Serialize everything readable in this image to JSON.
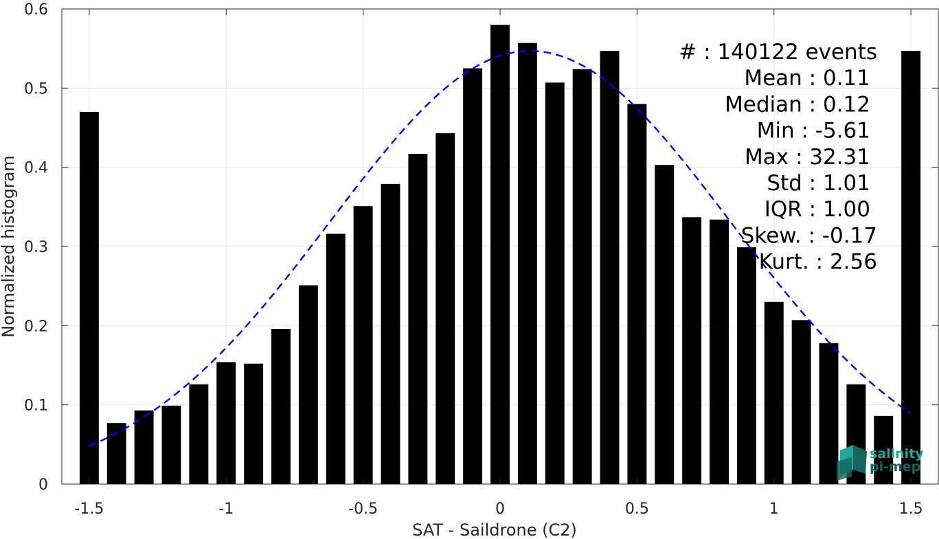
{
  "chart_data": {
    "type": "bar",
    "title": "",
    "xlabel": "SAT - Saildrone (C2)",
    "ylabel": "Normalized histogram",
    "xlim": [
      -1.6,
      1.6
    ],
    "ylim": [
      0,
      0.6
    ],
    "x_ticks": [
      -1.5,
      -1,
      -0.5,
      0,
      0.5,
      1,
      1.5
    ],
    "x_tick_labels": [
      "-1.5",
      "-1",
      "-0.5",
      "0",
      "0.5",
      "1",
      "1.5"
    ],
    "y_ticks": [
      0,
      0.1,
      0.2,
      0.3,
      0.4,
      0.5,
      0.6
    ],
    "y_tick_labels": [
      "0",
      "0.1",
      "0.2",
      "0.3",
      "0.4",
      "0.5",
      "0.6"
    ],
    "grid": true,
    "bar_color": "#000000",
    "fit_color": "#0000ff",
    "bin_centers": [
      -1.5,
      -1.4,
      -1.3,
      -1.2,
      -1.1,
      -1.0,
      -0.9,
      -0.8,
      -0.7,
      -0.6,
      -0.5,
      -0.4,
      -0.3,
      -0.2,
      -0.1,
      0.0,
      0.1,
      0.2,
      0.3,
      0.4,
      0.5,
      0.6,
      0.7,
      0.8,
      0.9,
      1.0,
      1.1,
      1.2,
      1.3,
      1.4,
      1.5
    ],
    "values": [
      0.47,
      0.077,
      0.093,
      0.099,
      0.126,
      0.154,
      0.152,
      0.196,
      0.251,
      0.316,
      0.351,
      0.379,
      0.417,
      0.443,
      0.525,
      0.58,
      0.557,
      0.507,
      0.524,
      0.547,
      0.48,
      0.403,
      0.337,
      0.334,
      0.299,
      0.23,
      0.207,
      0.178,
      0.126,
      0.086,
      0.547
    ],
    "fit": {
      "type": "gaussian-dashed",
      "mean": 0.11,
      "std": 0.73,
      "peak": 0.547,
      "x_range": [
        -1.5,
        1.5
      ]
    }
  },
  "stats": [
    "#  : 140122 events",
    "Mean : 0.11",
    "Median : 0.12",
    "Min : -5.61",
    "Max : 32.31",
    "Std : 1.01",
    "IQR : 1.00",
    "Skew. : -0.17",
    "Kurt. : 2.56"
  ],
  "logo": {
    "line1": "salinity",
    "line2": "pi-mep",
    "color": "#1fa89a",
    "color_dark": "#14665f"
  }
}
